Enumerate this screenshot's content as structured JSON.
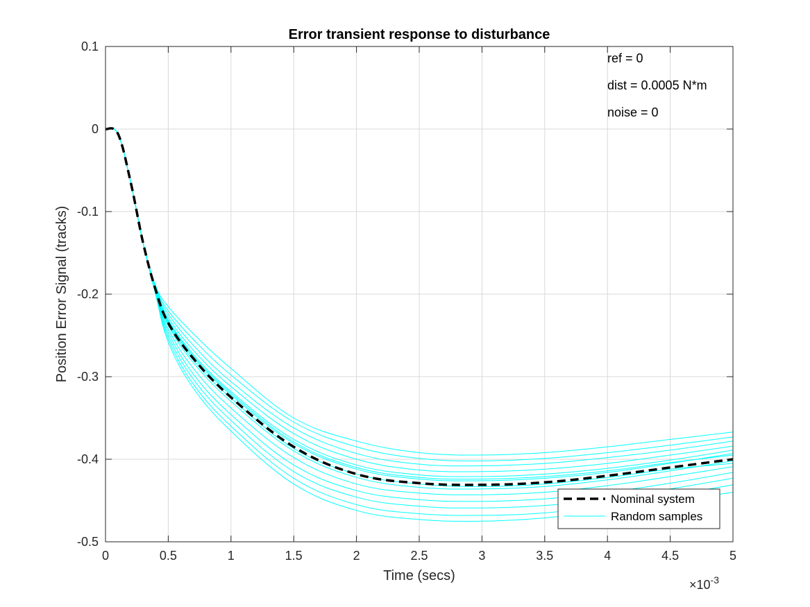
{
  "chart_data": {
    "type": "line",
    "title": "Error transient response to disturbance",
    "xlabel": "Time (secs)",
    "ylabel": "Position Error Signal (tracks)",
    "xlim": [
      0,
      0.005
    ],
    "ylim": [
      -0.5,
      0.1
    ],
    "x_ticks": [
      0,
      0.0005,
      0.001,
      0.0015,
      0.002,
      0.0025,
      0.003,
      0.0035,
      0.004,
      0.0045,
      0.005
    ],
    "x_tick_labels": [
      "0",
      "0.5",
      "1",
      "1.5",
      "2",
      "2.5",
      "3",
      "3.5",
      "4",
      "4.5",
      "5"
    ],
    "x_exponent_label": "×10",
    "x_exponent_power": "-3",
    "y_ticks": [
      0.1,
      0,
      -0.1,
      -0.2,
      -0.3,
      -0.4,
      -0.5
    ],
    "y_tick_labels": [
      "0.1",
      "0",
      "-0.1",
      "-0.2",
      "-0.3",
      "-0.4",
      "-0.5"
    ],
    "grid": true,
    "legend_position": "bottom-right",
    "annotations": [
      "ref = 0",
      "dist = 0.0005 N*m",
      "noise = 0"
    ],
    "colors": {
      "nominal": "#000000",
      "samples": "#00ffff",
      "grid": "#d9d9d9",
      "axes": "#262626"
    },
    "x": [
      0,
      0.0001,
      0.0002,
      0.0003,
      0.0004,
      0.0005,
      0.0007,
      0.001,
      0.0015,
      0.002,
      0.0025,
      0.003,
      0.0035,
      0.004,
      0.0045,
      0.005
    ],
    "series": [
      {
        "name": "Nominal system",
        "style": "dashed",
        "values": [
          0,
          -0.006,
          -0.064,
          -0.138,
          -0.195,
          -0.235,
          -0.278,
          -0.325,
          -0.385,
          -0.418,
          -0.429,
          -0.431,
          -0.428,
          -0.42,
          -0.41,
          -0.4
        ]
      },
      {
        "name": "Random samples",
        "style": "solid",
        "values": [
          0,
          -0.006,
          -0.064,
          -0.138,
          -0.19,
          -0.215,
          -0.248,
          -0.29,
          -0.35,
          -0.378,
          -0.392,
          -0.395,
          -0.392,
          -0.385,
          -0.376,
          -0.367
        ]
      },
      {
        "values": [
          0,
          -0.006,
          -0.064,
          -0.138,
          -0.191,
          -0.22,
          -0.255,
          -0.298,
          -0.355,
          -0.385,
          -0.399,
          -0.402,
          -0.399,
          -0.392,
          -0.383,
          -0.373
        ]
      },
      {
        "values": [
          0,
          -0.006,
          -0.064,
          -0.138,
          -0.192,
          -0.224,
          -0.262,
          -0.306,
          -0.362,
          -0.393,
          -0.406,
          -0.408,
          -0.405,
          -0.398,
          -0.389,
          -0.378
        ]
      },
      {
        "values": [
          0,
          -0.006,
          -0.064,
          -0.138,
          -0.193,
          -0.228,
          -0.268,
          -0.312,
          -0.369,
          -0.4,
          -0.413,
          -0.415,
          -0.412,
          -0.405,
          -0.395,
          -0.384
        ]
      },
      {
        "values": [
          0,
          -0.006,
          -0.064,
          -0.138,
          -0.194,
          -0.231,
          -0.273,
          -0.318,
          -0.376,
          -0.407,
          -0.419,
          -0.421,
          -0.418,
          -0.411,
          -0.401,
          -0.389
        ]
      },
      {
        "values": [
          0,
          -0.006,
          -0.064,
          -0.138,
          -0.195,
          -0.234,
          -0.277,
          -0.322,
          -0.381,
          -0.412,
          -0.424,
          -0.426,
          -0.423,
          -0.416,
          -0.405,
          -0.393
        ]
      },
      {
        "values": [
          0,
          -0.006,
          -0.064,
          -0.138,
          -0.196,
          -0.238,
          -0.283,
          -0.33,
          -0.39,
          -0.422,
          -0.434,
          -0.436,
          -0.433,
          -0.425,
          -0.414,
          -0.402
        ]
      },
      {
        "values": [
          0,
          -0.006,
          -0.064,
          -0.138,
          -0.197,
          -0.242,
          -0.29,
          -0.338,
          -0.398,
          -0.43,
          -0.441,
          -0.443,
          -0.44,
          -0.432,
          -0.421,
          -0.409
        ]
      },
      {
        "values": [
          0,
          -0.006,
          -0.064,
          -0.138,
          -0.198,
          -0.246,
          -0.297,
          -0.346,
          -0.407,
          -0.438,
          -0.449,
          -0.451,
          -0.448,
          -0.44,
          -0.429,
          -0.416
        ]
      },
      {
        "values": [
          0,
          -0.006,
          -0.064,
          -0.138,
          -0.199,
          -0.25,
          -0.303,
          -0.353,
          -0.415,
          -0.446,
          -0.457,
          -0.459,
          -0.456,
          -0.448,
          -0.436,
          -0.423
        ]
      },
      {
        "values": [
          0,
          -0.006,
          -0.064,
          -0.138,
          -0.2,
          -0.254,
          -0.309,
          -0.36,
          -0.423,
          -0.455,
          -0.466,
          -0.468,
          -0.465,
          -0.456,
          -0.444,
          -0.431
        ]
      },
      {
        "values": [
          0,
          -0.006,
          -0.064,
          -0.138,
          -0.201,
          -0.258,
          -0.314,
          -0.366,
          -0.43,
          -0.462,
          -0.473,
          -0.475,
          -0.471,
          -0.462,
          -0.451,
          -0.44
        ]
      },
      {
        "values": [
          0,
          -0.006,
          -0.064,
          -0.138,
          -0.194,
          -0.232,
          -0.275,
          -0.32,
          -0.379,
          -0.41,
          -0.422,
          -0.424,
          -0.421,
          -0.414,
          -0.404,
          -0.395
        ]
      },
      {
        "values": [
          0,
          -0.006,
          -0.064,
          -0.138,
          -0.196,
          -0.236,
          -0.28,
          -0.326,
          -0.387,
          -0.418,
          -0.43,
          -0.433,
          -0.43,
          -0.422,
          -0.412,
          -0.405
        ]
      }
    ]
  }
}
